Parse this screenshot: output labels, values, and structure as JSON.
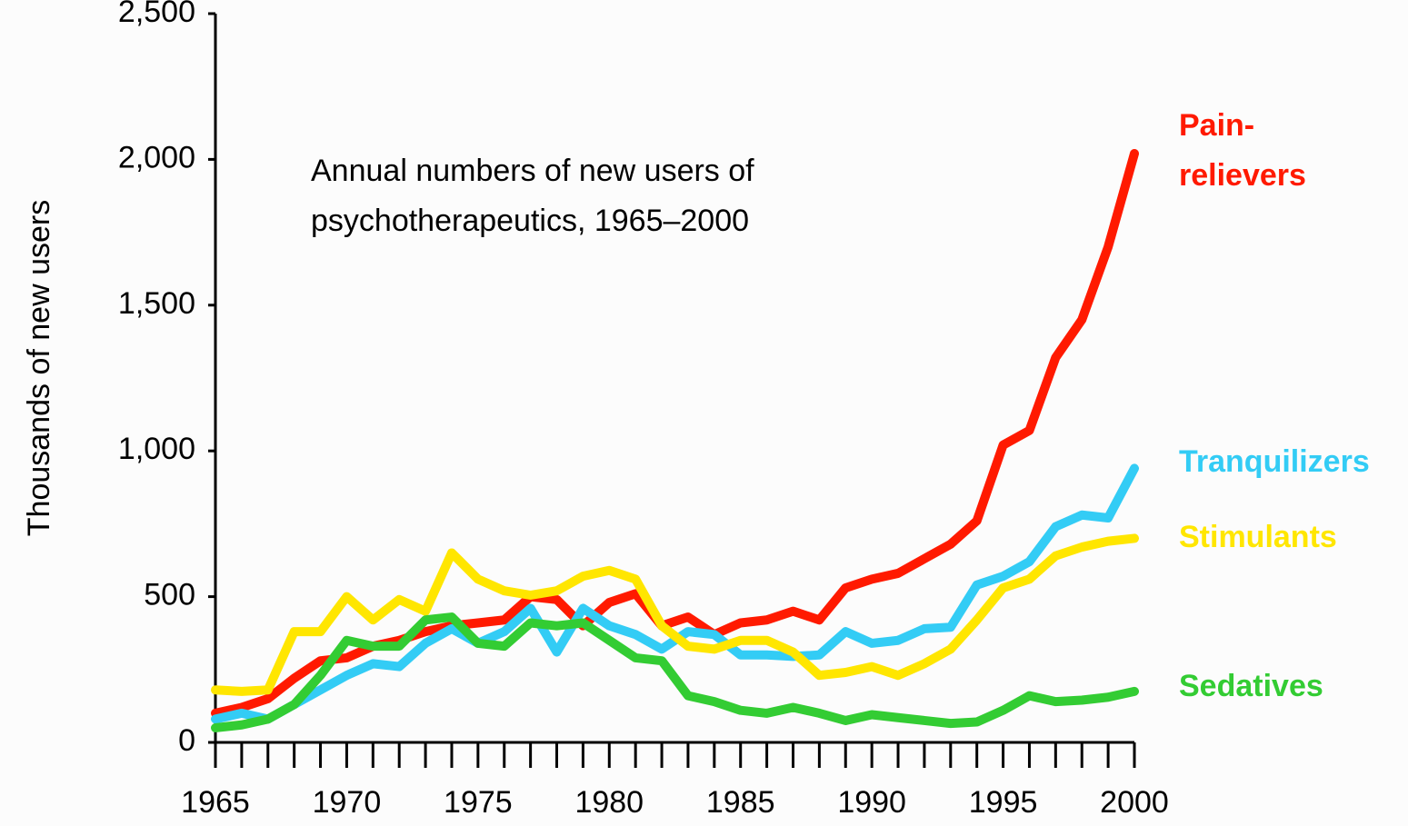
{
  "chart_data": {
    "type": "line",
    "title": [
      "Annual numbers of new users of",
      "psychotherapeutics, 1965–2000"
    ],
    "ylabel": "Thousands of new users",
    "x": [
      1965,
      1966,
      1967,
      1968,
      1969,
      1970,
      1971,
      1972,
      1973,
      1974,
      1975,
      1976,
      1977,
      1978,
      1979,
      1980,
      1981,
      1982,
      1983,
      1984,
      1985,
      1986,
      1987,
      1988,
      1989,
      1990,
      1991,
      1992,
      1993,
      1994,
      1995,
      1996,
      1997,
      1998,
      1999,
      2000
    ],
    "xlim": [
      1965,
      2000
    ],
    "xticks": [
      1965,
      1970,
      1975,
      1980,
      1985,
      1990,
      1995,
      2000
    ],
    "xticks_minor": [
      1965,
      1966,
      1967,
      1968,
      1969,
      1970,
      1971,
      1972,
      1973,
      1974,
      1975,
      1976,
      1977,
      1978,
      1979,
      1980,
      1981,
      1982,
      1983,
      1984,
      1985,
      1986,
      1987,
      1988,
      1989,
      1990,
      1991,
      1992,
      1993,
      1994,
      1995,
      1996,
      1997,
      1998,
      1999,
      2000
    ],
    "ylim": [
      0,
      2500
    ],
    "yticks": [
      0,
      500,
      {
        "value": 1000,
        "label": "1,000"
      },
      {
        "value": 1500,
        "label": "1,500"
      },
      {
        "value": 2000,
        "label": "2,000"
      },
      {
        "value": 2500,
        "label": "2,500"
      }
    ],
    "series": [
      {
        "name": "Pain-\nrelievers",
        "color": "#ff1a00",
        "values": [
          100,
          120,
          150,
          220,
          280,
          290,
          330,
          350,
          380,
          400,
          410,
          420,
          500,
          490,
          400,
          480,
          510,
          400,
          430,
          370,
          410,
          420,
          450,
          420,
          530,
          560,
          580,
          630,
          680,
          760,
          1020,
          1070,
          1320,
          1450,
          1700,
          2020
        ]
      },
      {
        "name": "Tranquilizers",
        "color": "#33ccf5",
        "values": [
          80,
          100,
          80,
          130,
          180,
          230,
          270,
          260,
          340,
          390,
          340,
          380,
          460,
          310,
          460,
          400,
          370,
          320,
          380,
          370,
          300,
          300,
          295,
          300,
          380,
          340,
          350,
          390,
          395,
          540,
          570,
          620,
          740,
          780,
          770,
          940
        ]
      },
      {
        "name": "Stimulants",
        "color": "#ffe600",
        "values": [
          180,
          175,
          180,
          380,
          380,
          500,
          420,
          490,
          450,
          650,
          560,
          520,
          505,
          520,
          570,
          590,
          560,
          400,
          330,
          320,
          350,
          350,
          310,
          230,
          240,
          260,
          230,
          270,
          320,
          420,
          530,
          560,
          640,
          670,
          690,
          700
        ]
      },
      {
        "name": "Sedatives",
        "color": "#33cc33",
        "values": [
          50,
          60,
          80,
          130,
          230,
          350,
          330,
          330,
          420,
          430,
          340,
          330,
          410,
          400,
          410,
          350,
          290,
          280,
          160,
          140,
          110,
          100,
          120,
          100,
          75,
          95,
          85,
          75,
          65,
          70,
          110,
          160,
          140,
          145,
          155,
          175
        ]
      }
    ]
  }
}
